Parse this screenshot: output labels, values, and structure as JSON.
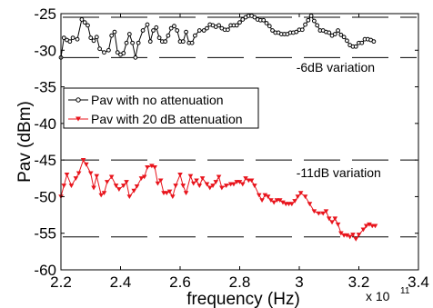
{
  "chart_data": {
    "type": "line",
    "xlabel": "frequency (Hz)",
    "ylabel": "Pav (dBm)",
    "x_multiplier_label": "x 10",
    "x_multiplier_exponent": "11",
    "xlim": [
      2.2,
      3.4
    ],
    "ylim": [
      -60,
      -25
    ],
    "xticks": [
      "2.2",
      "2.4",
      "2.6",
      "2.8",
      "3",
      "3.2",
      "3.4"
    ],
    "yticks": [
      "-25",
      "-30",
      "-35",
      "-40",
      "-45",
      "-50",
      "-55",
      "-60"
    ],
    "grid": false,
    "legend_position": "center-left",
    "series": [
      {
        "name": "Pav with no attenuation",
        "color": "#000000",
        "marker": "circle",
        "x": [
          2.2,
          2.21,
          2.22,
          2.23,
          2.24,
          2.255,
          2.27,
          2.28,
          2.29,
          2.3,
          2.31,
          2.32,
          2.33,
          2.345,
          2.36,
          2.37,
          2.38,
          2.39,
          2.4,
          2.41,
          2.42,
          2.43,
          2.44,
          2.45,
          2.46,
          2.475,
          2.49,
          2.5,
          2.51,
          2.52,
          2.53,
          2.54,
          2.55,
          2.56,
          2.57,
          2.58,
          2.59,
          2.6,
          2.61,
          2.62,
          2.63,
          2.64,
          2.65,
          2.665,
          2.68,
          2.69,
          2.7,
          2.71,
          2.72,
          2.73,
          2.74,
          2.75,
          2.76,
          2.77,
          2.78,
          2.79,
          2.8,
          2.81,
          2.82,
          2.83,
          2.84,
          2.85,
          2.86,
          2.87,
          2.88,
          2.89,
          2.9,
          2.91,
          2.92,
          2.93,
          2.94,
          2.95,
          2.96,
          2.97,
          2.98,
          2.99,
          3.0,
          3.01,
          3.02,
          3.03,
          3.04,
          3.05,
          3.06,
          3.07,
          3.08,
          3.09,
          3.1,
          3.11,
          3.12,
          3.13,
          3.14,
          3.15,
          3.16,
          3.17,
          3.18,
          3.19,
          3.2,
          3.21,
          3.22,
          3.23,
          3.24,
          3.25
        ],
        "y": [
          -31.0,
          -28.3,
          -28.6,
          -28.8,
          -28.3,
          -28.5,
          -25.8,
          -26.2,
          -26.6,
          -28.3,
          -28.7,
          -28.2,
          -29.8,
          -30.3,
          -30.0,
          -28.0,
          -27.5,
          -30.3,
          -30.6,
          -30.4,
          -29.0,
          -27.8,
          -29.0,
          -31.0,
          -29.0,
          -27.3,
          -26.5,
          -28.8,
          -27.3,
          -26.9,
          -28.3,
          -28.8,
          -28.8,
          -28.0,
          -27.0,
          -26.7,
          -27.3,
          -28.8,
          -28.8,
          -27.5,
          -29.0,
          -29.0,
          -28.0,
          -27.3,
          -27.3,
          -27.0,
          -26.5,
          -26.6,
          -26.8,
          -26.6,
          -27.0,
          -27.2,
          -27.2,
          -26.6,
          -26.6,
          -26.6,
          -26.2,
          -25.8,
          -25.5,
          -25.3,
          -25.3,
          -25.5,
          -25.8,
          -25.9,
          -25.9,
          -26.3,
          -26.7,
          -27.3,
          -27.6,
          -27.6,
          -27.8,
          -27.8,
          -27.8,
          -27.6,
          -27.6,
          -27.5,
          -27.2,
          -27.2,
          -26.5,
          -25.9,
          -25.3,
          -26.0,
          -26.6,
          -27.3,
          -27.3,
          -27.5,
          -27.6,
          -28.0,
          -27.8,
          -27.3,
          -27.9,
          -28.2,
          -28.7,
          -29.3,
          -29.5,
          -29.5,
          -29.0,
          -29.0,
          -28.5,
          -28.5,
          -28.6,
          -28.8
        ]
      },
      {
        "name": "Pav with 20 dB attenuation",
        "color": "#e8141c",
        "marker": "triangle-down",
        "x": [
          2.2,
          2.21,
          2.22,
          2.235,
          2.25,
          2.26,
          2.275,
          2.285,
          2.3,
          2.31,
          2.32,
          2.335,
          2.345,
          2.355,
          2.37,
          2.385,
          2.395,
          2.41,
          2.42,
          2.43,
          2.445,
          2.455,
          2.47,
          2.48,
          2.49,
          2.505,
          2.515,
          2.525,
          2.535,
          2.545,
          2.555,
          2.565,
          2.575,
          2.585,
          2.6,
          2.61,
          2.62,
          2.635,
          2.645,
          2.655,
          2.665,
          2.675,
          2.69,
          2.7,
          2.71,
          2.72,
          2.73,
          2.74,
          2.755,
          2.77,
          2.78,
          2.79,
          2.8,
          2.81,
          2.82,
          2.83,
          2.84,
          2.85,
          2.865,
          2.875,
          2.885,
          2.895,
          2.905,
          2.915,
          2.925,
          2.935,
          2.945,
          2.955,
          2.965,
          2.975,
          2.985,
          2.995,
          3.005,
          3.02,
          3.035,
          3.05,
          3.065,
          3.08,
          3.09,
          3.1,
          3.11,
          3.12,
          3.13,
          3.14,
          3.15,
          3.16,
          3.17,
          3.18,
          3.19,
          3.2,
          3.215,
          3.225,
          3.235,
          3.245,
          3.255
        ],
        "y": [
          -50.0,
          -48.5,
          -47.0,
          -48.5,
          -47.5,
          -46.8,
          -45.0,
          -45.6,
          -46.8,
          -48.8,
          -47.2,
          -49.8,
          -49.5,
          -48.0,
          -47.3,
          -48.5,
          -49.0,
          -48.5,
          -48.0,
          -50.0,
          -49.2,
          -48.6,
          -47.5,
          -47.3,
          -46.0,
          -45.8,
          -46.0,
          -48.2,
          -47.8,
          -49.5,
          -49.5,
          -49.3,
          -50.0,
          -48.5,
          -47.0,
          -48.5,
          -49.5,
          -47.2,
          -48.2,
          -47.8,
          -48.5,
          -47.5,
          -48.3,
          -48.8,
          -48.5,
          -48.0,
          -47.3,
          -48.8,
          -48.5,
          -48.3,
          -48.3,
          -48.0,
          -48.0,
          -48.3,
          -47.5,
          -47.8,
          -47.8,
          -48.5,
          -49.8,
          -50.5,
          -49.8,
          -50.0,
          -50.5,
          -50.8,
          -50.5,
          -50.5,
          -50.8,
          -51.0,
          -51.0,
          -51.0,
          -50.6,
          -50.0,
          -49.5,
          -50.0,
          -51.0,
          -52.0,
          -52.3,
          -52.3,
          -52.0,
          -53.0,
          -53.5,
          -53.0,
          -53.8,
          -55.0,
          -55.3,
          -55.3,
          -55.5,
          -55.2,
          -55.8,
          -55.2,
          -54.5,
          -54.0,
          -53.8,
          -54.0,
          -54.0
        ]
      }
    ],
    "reference_lines": [
      {
        "y": -25.5,
        "style": "long-dash"
      },
      {
        "y": -31.0,
        "style": "long-dash"
      },
      {
        "y": -45.0,
        "style": "long-dash"
      },
      {
        "y": -55.5,
        "style": "long-dash"
      }
    ],
    "annotations": [
      {
        "text": "-6dB variation",
        "x": 2.99,
        "y": -32.3
      },
      {
        "text": "-11dB variation",
        "x": 2.99,
        "y": -46.7
      }
    ]
  }
}
